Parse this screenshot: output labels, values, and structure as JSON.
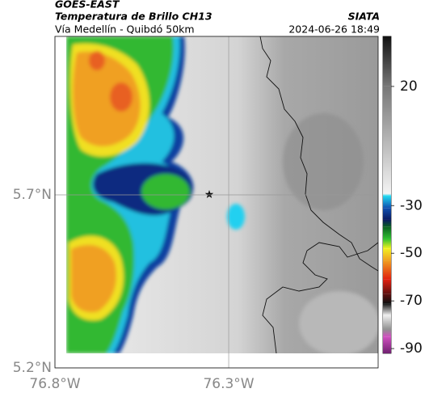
{
  "header": {
    "satellite": "GOES-EAST",
    "product": "Temperatura de Brillo CH13",
    "route": "Vía Medellín - Quibdó 50km",
    "source": "SIATA",
    "timestamp": "2024-06-26 18:49"
  },
  "map": {
    "xlim": [
      -76.8,
      -75.87
    ],
    "ylim": [
      5.2,
      6.158
    ],
    "xticks": [
      {
        "value": -76.8,
        "label": "76.8°W"
      },
      {
        "value": -76.3,
        "label": "76.3°W"
      }
    ],
    "yticks": [
      {
        "value": 5.2,
        "label": "5.2°N"
      },
      {
        "value": 5.7,
        "label": "5.7°N"
      }
    ],
    "grid": true
  },
  "colorbar": {
    "lim": [
      -92,
      41
    ],
    "ticks": [
      20,
      -30,
      -50,
      -70,
      -90
    ],
    "stops": [
      {
        "value": 41,
        "color": "#111111"
      },
      {
        "value": 20,
        "color": "#777777"
      },
      {
        "value": -25,
        "color": "#f4f4f4"
      },
      {
        "value": -26,
        "color": "#20d8f0"
      },
      {
        "value": -31,
        "color": "#1050b0"
      },
      {
        "value": -36,
        "color": "#0a1a60"
      },
      {
        "value": -39,
        "color": "#0a6020"
      },
      {
        "value": -44,
        "color": "#30c030"
      },
      {
        "value": -48,
        "color": "#f0f020"
      },
      {
        "value": -53,
        "color": "#f0a020"
      },
      {
        "value": -61,
        "color": "#e02010"
      },
      {
        "value": -67,
        "color": "#601010"
      },
      {
        "value": -71,
        "color": "#101010"
      },
      {
        "value": -76,
        "color": "#f0f0f0"
      },
      {
        "value": -82,
        "color": "#909090"
      },
      {
        "value": -85,
        "color": "#d050c0"
      },
      {
        "value": -92,
        "color": "#702070"
      }
    ]
  }
}
